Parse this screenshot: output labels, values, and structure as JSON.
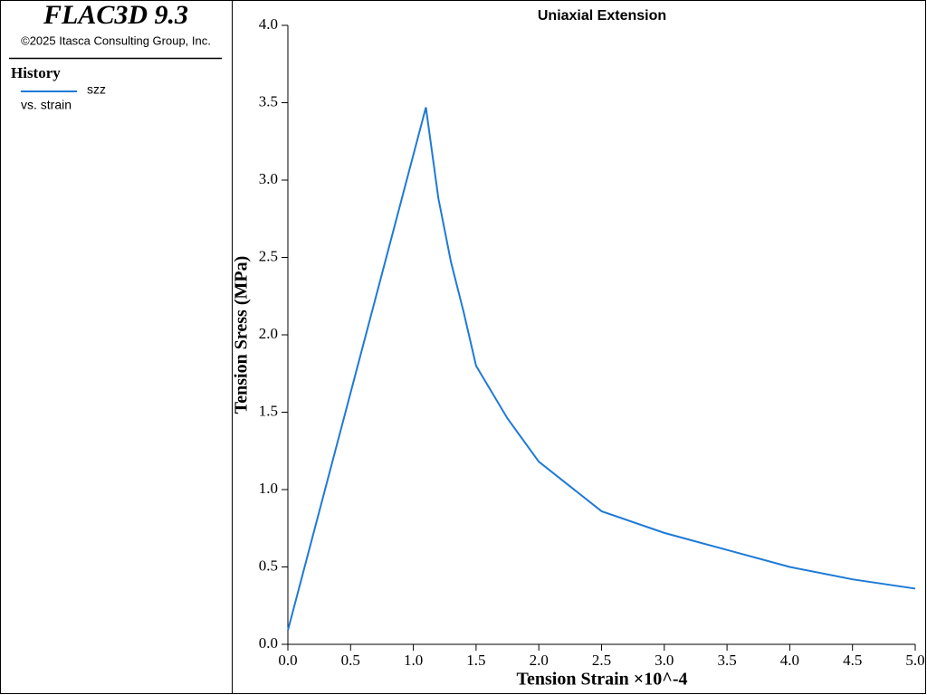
{
  "panel": {
    "product": "FLAC3D 9.3",
    "copyright": "©2025 Itasca Consulting Group, Inc.",
    "heading": "History",
    "legend_sub": "vs. strain"
  },
  "chart_data": {
    "type": "line",
    "title": "Uniaxial Extension",
    "xlabel": "Tension Strain ×10^-4",
    "ylabel": "Tension Sress (MPa)",
    "x": [
      0,
      1.1,
      1.2,
      1.3,
      1.4,
      1.5,
      1.75,
      2.0,
      2.5,
      3.0,
      3.5,
      4.0,
      4.5,
      5.0
    ],
    "series": [
      {
        "name": "szz",
        "color": "#1e7ad6",
        "values": [
          0.09,
          3.47,
          2.88,
          2.47,
          2.15,
          1.8,
          1.46,
          1.18,
          0.86,
          0.72,
          0.61,
          0.5,
          0.42,
          0.36
        ]
      }
    ],
    "xlim": [
      0,
      5
    ],
    "ylim": [
      0,
      4
    ],
    "xticks": [
      {
        "value": 0,
        "label": "0.0"
      },
      0.5,
      {
        "value": 1,
        "label": "1.0"
      },
      1.5,
      {
        "value": 2,
        "label": "2.0"
      },
      2.5,
      {
        "value": 3,
        "label": "3.0"
      },
      3.5,
      {
        "value": 4,
        "label": "4.0"
      },
      4.5,
      {
        "value": 5,
        "label": "5.0"
      }
    ],
    "yticks": [
      {
        "value": 0,
        "label": "0.0"
      },
      0.5,
      {
        "value": 1,
        "label": "1.0"
      },
      1.5,
      {
        "value": 2,
        "label": "2.0"
      },
      2.5,
      {
        "value": 3,
        "label": "3.0"
      },
      3.5,
      {
        "value": 4,
        "label": "4.0"
      }
    ],
    "grid": false
  }
}
